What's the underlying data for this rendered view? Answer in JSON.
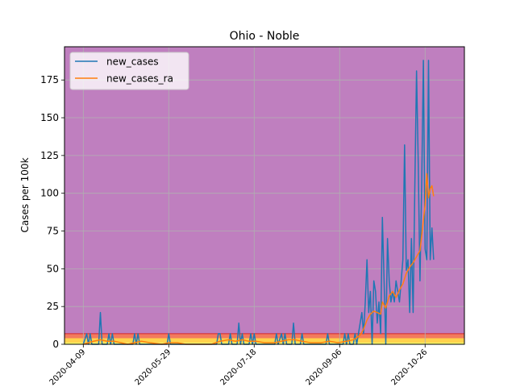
{
  "chart_data": {
    "type": "line",
    "title": "Ohio - Noble",
    "xlabel": "",
    "ylabel": "Cases per 100k",
    "ylim": [
      0,
      197
    ],
    "xlim": [
      "2020-03-29",
      "2020-11-18"
    ],
    "x_ticks": [
      "2020-04-09",
      "2020-05-29",
      "2020-07-18",
      "2020-09-06",
      "2020-10-26"
    ],
    "y_ticks": [
      0,
      25,
      50,
      75,
      100,
      125,
      150,
      175
    ],
    "grid": true,
    "legend": {
      "position": "top-left",
      "entries": [
        "new_cases",
        "new_cases_ra"
      ]
    },
    "bands": [
      {
        "from": 0,
        "to": 1,
        "color": "#ffff66"
      },
      {
        "from": 1,
        "to": 4,
        "color": "#ffd24d"
      },
      {
        "from": 4,
        "to": 7,
        "color": "#f27a5e"
      },
      {
        "from": 7,
        "to": 197,
        "color": "#bf7fbf"
      }
    ],
    "series": [
      {
        "name": "new_cases",
        "color": "#1f77b4",
        "points": [
          [
            "2020-04-09",
            0
          ],
          [
            "2020-04-11",
            7
          ],
          [
            "2020-04-12",
            0
          ],
          [
            "2020-04-13",
            7
          ],
          [
            "2020-04-14",
            0
          ],
          [
            "2020-04-18",
            0
          ],
          [
            "2020-04-19",
            21
          ],
          [
            "2020-04-20",
            0
          ],
          [
            "2020-04-23",
            0
          ],
          [
            "2020-04-24",
            7
          ],
          [
            "2020-04-25",
            0
          ],
          [
            "2020-04-26",
            7
          ],
          [
            "2020-04-27",
            0
          ],
          [
            "2020-05-02",
            0
          ],
          [
            "2020-05-04",
            0
          ],
          [
            "2020-05-08",
            0
          ],
          [
            "2020-05-09",
            7
          ],
          [
            "2020-05-10",
            0
          ],
          [
            "2020-05-11",
            7
          ],
          [
            "2020-05-12",
            0
          ],
          [
            "2020-05-28",
            0
          ],
          [
            "2020-05-29",
            7
          ],
          [
            "2020-05-30",
            0
          ],
          [
            "2020-06-26",
            0
          ],
          [
            "2020-06-27",
            7
          ],
          [
            "2020-06-28",
            7
          ],
          [
            "2020-06-29",
            0
          ],
          [
            "2020-07-03",
            0
          ],
          [
            "2020-07-04",
            7
          ],
          [
            "2020-07-05",
            0
          ],
          [
            "2020-07-08",
            0
          ],
          [
            "2020-07-09",
            14
          ],
          [
            "2020-07-10",
            0
          ],
          [
            "2020-07-11",
            7
          ],
          [
            "2020-07-12",
            0
          ],
          [
            "2020-07-15",
            0
          ],
          [
            "2020-07-16",
            7
          ],
          [
            "2020-07-17",
            0
          ],
          [
            "2020-07-18",
            7
          ],
          [
            "2020-07-19",
            0
          ],
          [
            "2020-07-30",
            0
          ],
          [
            "2020-07-31",
            7
          ],
          [
            "2020-08-01",
            0
          ],
          [
            "2020-08-03",
            7
          ],
          [
            "2020-08-04",
            0
          ],
          [
            "2020-08-05",
            7
          ],
          [
            "2020-08-06",
            0
          ],
          [
            "2020-08-09",
            0
          ],
          [
            "2020-08-10",
            14
          ],
          [
            "2020-08-11",
            0
          ],
          [
            "2020-08-14",
            0
          ],
          [
            "2020-08-15",
            7
          ],
          [
            "2020-08-16",
            0
          ],
          [
            "2020-08-29",
            0
          ],
          [
            "2020-08-30",
            7
          ],
          [
            "2020-08-31",
            0
          ],
          [
            "2020-09-08",
            0
          ],
          [
            "2020-09-09",
            7
          ],
          [
            "2020-09-10",
            0
          ],
          [
            "2020-09-11",
            7
          ],
          [
            "2020-09-12",
            0
          ],
          [
            "2020-09-14",
            0
          ],
          [
            "2020-09-15",
            7
          ],
          [
            "2020-09-16",
            0
          ],
          [
            "2020-09-17",
            7
          ],
          [
            "2020-09-18",
            14
          ],
          [
            "2020-09-19",
            21
          ],
          [
            "2020-09-20",
            7
          ],
          [
            "2020-09-21",
            28
          ],
          [
            "2020-09-22",
            56
          ],
          [
            "2020-09-23",
            21
          ],
          [
            "2020-09-24",
            35
          ],
          [
            "2020-09-25",
            0
          ],
          [
            "2020-09-26",
            42
          ],
          [
            "2020-09-27",
            35
          ],
          [
            "2020-09-28",
            14
          ],
          [
            "2020-09-29",
            28
          ],
          [
            "2020-09-30",
            7
          ],
          [
            "2020-10-01",
            84
          ],
          [
            "2020-10-02",
            42
          ],
          [
            "2020-10-03",
            0
          ],
          [
            "2020-10-04",
            70
          ],
          [
            "2020-10-05",
            42
          ],
          [
            "2020-10-06",
            28
          ],
          [
            "2020-10-07",
            35
          ],
          [
            "2020-10-08",
            28
          ],
          [
            "2020-10-09",
            42
          ],
          [
            "2020-10-10",
            35
          ],
          [
            "2020-10-11",
            28
          ],
          [
            "2020-10-12",
            42
          ],
          [
            "2020-10-13",
            56
          ],
          [
            "2020-10-14",
            132
          ],
          [
            "2020-10-15",
            49
          ],
          [
            "2020-10-16",
            56
          ],
          [
            "2020-10-17",
            21
          ],
          [
            "2020-10-18",
            70
          ],
          [
            "2020-10-19",
            21
          ],
          [
            "2020-10-20",
            105
          ],
          [
            "2020-10-21",
            181
          ],
          [
            "2020-10-22",
            119
          ],
          [
            "2020-10-23",
            42
          ],
          [
            "2020-10-24",
            105
          ],
          [
            "2020-10-25",
            188
          ],
          [
            "2020-10-26",
            63
          ],
          [
            "2020-10-27",
            56
          ],
          [
            "2020-10-28",
            188
          ],
          [
            "2020-10-29",
            56
          ],
          [
            "2020-10-30",
            77
          ],
          [
            "2020-10-31",
            56
          ]
        ]
      },
      {
        "name": "new_cases_ra",
        "color": "#ff7f0e",
        "points": [
          [
            "2020-04-09",
            0
          ],
          [
            "2020-04-12",
            1
          ],
          [
            "2020-04-15",
            2
          ],
          [
            "2020-04-19",
            3
          ],
          [
            "2020-04-23",
            2
          ],
          [
            "2020-04-27",
            2
          ],
          [
            "2020-05-01",
            1
          ],
          [
            "2020-05-05",
            0
          ],
          [
            "2020-05-09",
            1
          ],
          [
            "2020-05-13",
            2
          ],
          [
            "2020-05-18",
            1
          ],
          [
            "2020-05-25",
            0
          ],
          [
            "2020-05-29",
            1
          ],
          [
            "2020-06-03",
            1
          ],
          [
            "2020-06-08",
            0
          ],
          [
            "2020-06-23",
            0
          ],
          [
            "2020-06-28",
            2
          ],
          [
            "2020-07-03",
            3
          ],
          [
            "2020-07-07",
            2
          ],
          [
            "2020-07-11",
            3
          ],
          [
            "2020-07-15",
            2
          ],
          [
            "2020-07-19",
            2
          ],
          [
            "2020-07-24",
            1
          ],
          [
            "2020-07-30",
            1
          ],
          [
            "2020-08-03",
            2
          ],
          [
            "2020-08-07",
            3
          ],
          [
            "2020-08-11",
            3
          ],
          [
            "2020-08-15",
            2
          ],
          [
            "2020-08-20",
            1
          ],
          [
            "2020-08-26",
            1
          ],
          [
            "2020-08-31",
            2
          ],
          [
            "2020-09-05",
            1
          ],
          [
            "2020-09-10",
            2
          ],
          [
            "2020-09-14",
            3
          ],
          [
            "2020-09-18",
            6
          ],
          [
            "2020-09-20",
            10
          ],
          [
            "2020-09-22",
            16
          ],
          [
            "2020-09-24",
            20
          ],
          [
            "2020-09-26",
            22
          ],
          [
            "2020-09-28",
            21
          ],
          [
            "2020-09-30",
            20
          ],
          [
            "2020-10-01",
            28
          ],
          [
            "2020-10-03",
            24
          ],
          [
            "2020-10-05",
            32
          ],
          [
            "2020-10-07",
            35
          ],
          [
            "2020-10-09",
            31
          ],
          [
            "2020-10-11",
            36
          ],
          [
            "2020-10-13",
            40
          ],
          [
            "2020-10-15",
            47
          ],
          [
            "2020-10-17",
            51
          ],
          [
            "2020-10-19",
            54
          ],
          [
            "2020-10-21",
            58
          ],
          [
            "2020-10-23",
            62
          ],
          [
            "2020-10-25",
            82
          ],
          [
            "2020-10-26",
            92
          ],
          [
            "2020-10-27",
            113
          ],
          [
            "2020-10-28",
            97
          ],
          [
            "2020-10-29",
            103
          ],
          [
            "2020-10-30",
            105
          ],
          [
            "2020-10-31",
            98
          ]
        ]
      }
    ]
  }
}
